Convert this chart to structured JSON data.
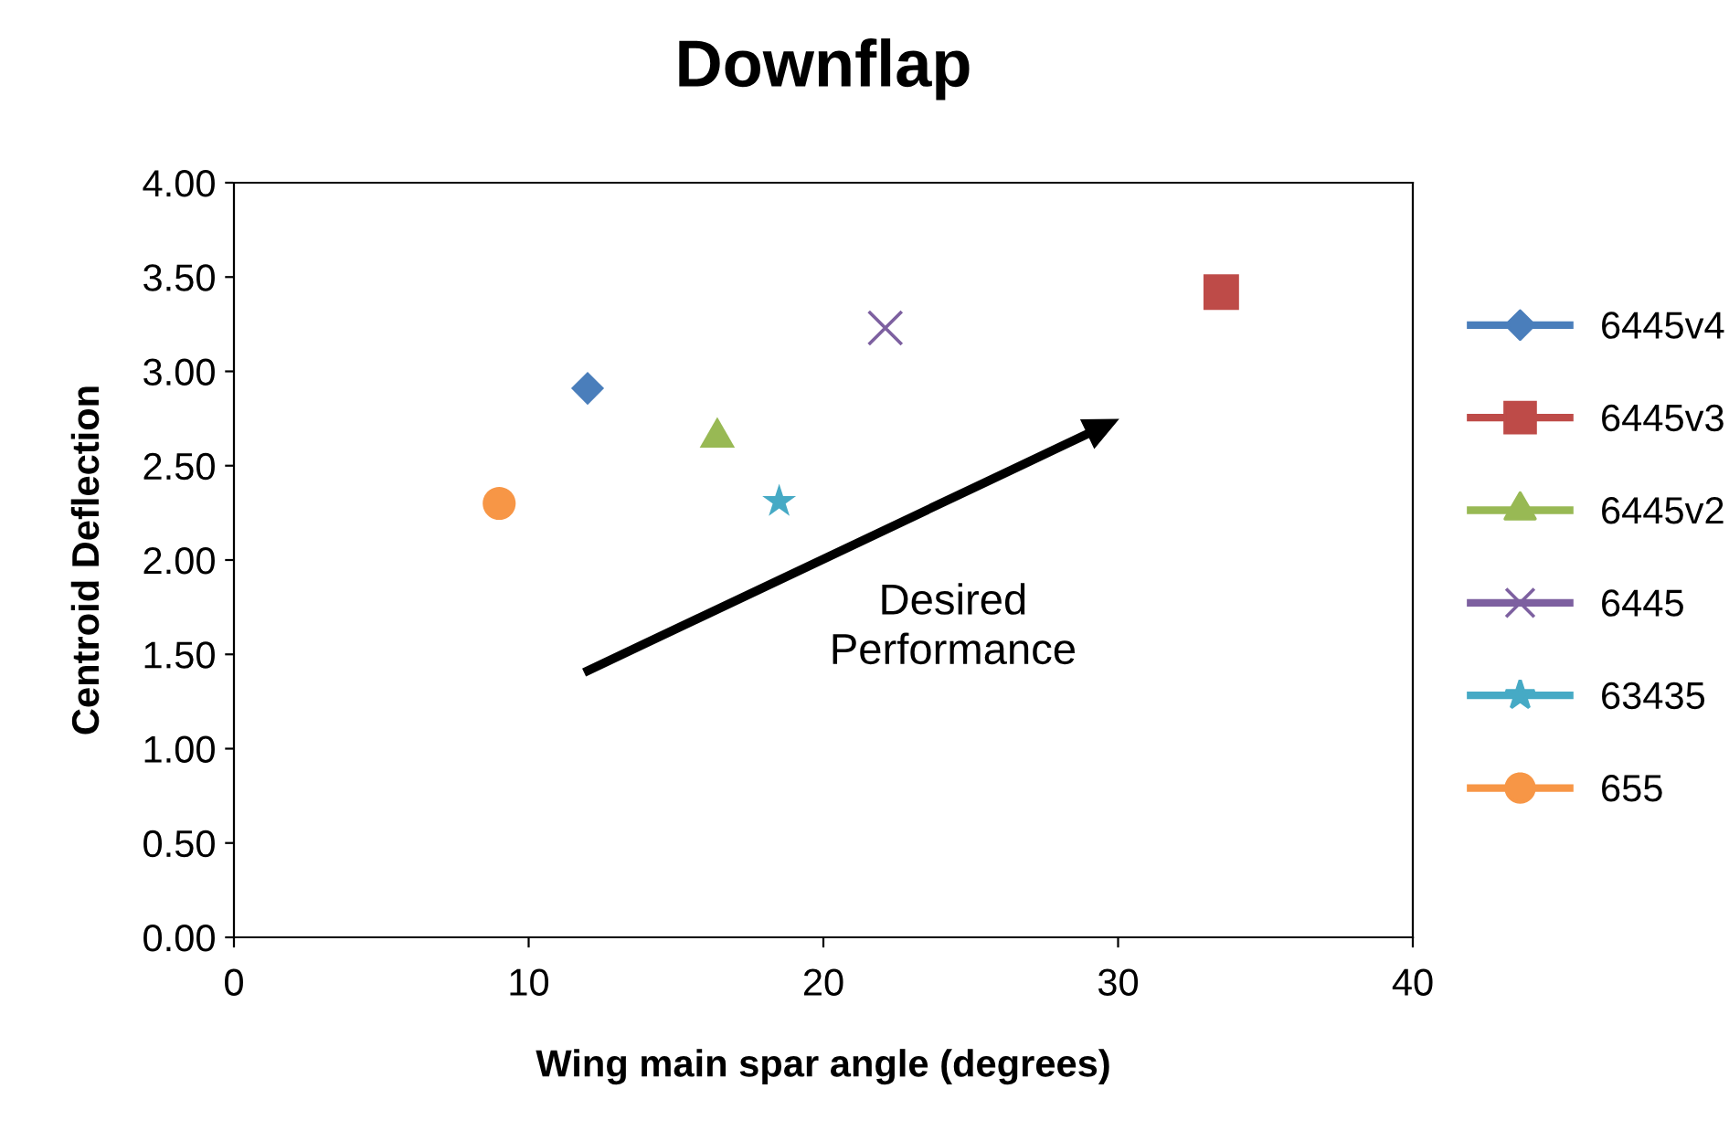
{
  "chart_data": {
    "type": "scatter",
    "title": "Downflap",
    "xlabel": "Wing main spar angle (degrees)",
    "ylabel": "Centroid Deflection",
    "xlim": [
      0,
      40
    ],
    "xticks": [
      0,
      10,
      20,
      30,
      40
    ],
    "ylim": [
      0,
      4
    ],
    "yticks": [
      {
        "value": 0,
        "label": "0.00"
      },
      {
        "value": 0.5,
        "label": "0.50"
      },
      {
        "value": 1,
        "label": "1.00"
      },
      {
        "value": 1.5,
        "label": "1.50"
      },
      {
        "value": 2,
        "label": "2.00"
      },
      {
        "value": 2.5,
        "label": "2.50"
      },
      {
        "value": 3,
        "label": "3.00"
      },
      {
        "value": 3.5,
        "label": "3.50"
      },
      {
        "value": 4,
        "label": "4.00"
      }
    ],
    "grid": false,
    "legend": "right",
    "annotations": [
      "Desired\nPerformance"
    ],
    "series": [
      {
        "name": "6445v4",
        "color": "#4a7ebb",
        "marker": "diamond",
        "x": [
          12.0
        ],
        "values": [
          2.91
        ]
      },
      {
        "name": "6445v3",
        "color": "#be4b48",
        "marker": "square",
        "x": [
          33.5
        ],
        "values": [
          3.42
        ]
      },
      {
        "name": "6445v2",
        "color": "#98b954",
        "marker": "triangle",
        "x": [
          16.4
        ],
        "values": [
          2.65
        ]
      },
      {
        "name": "6445",
        "color": "#7d60a0",
        "marker": "cross",
        "x": [
          22.1
        ],
        "values": [
          3.23
        ]
      },
      {
        "name": "63435",
        "color": "#46aac5",
        "marker": "star",
        "x": [
          18.5
        ],
        "values": [
          2.31
        ]
      },
      {
        "name": "655",
        "color": "#f79646",
        "marker": "circle",
        "x": [
          9.0
        ],
        "values": [
          2.3
        ]
      }
    ]
  }
}
